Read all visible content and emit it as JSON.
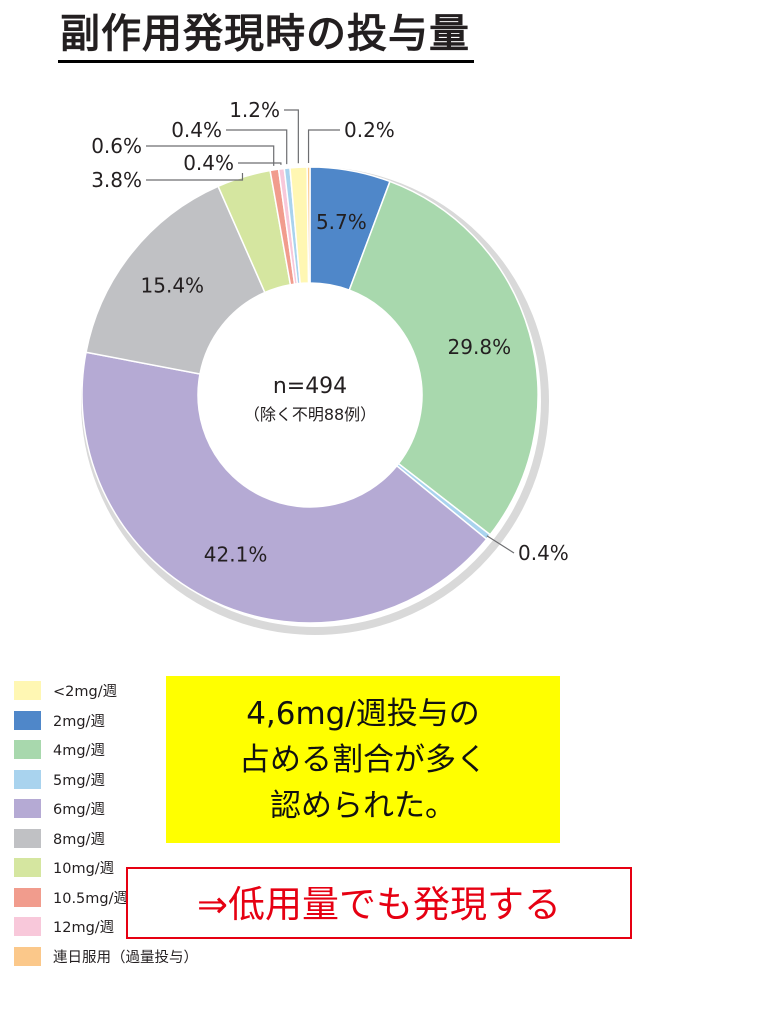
{
  "title": "副作用発現時の投与量",
  "chart_data": {
    "type": "pie",
    "center_label": "n=494",
    "center_sublabel": "（除く不明88例）",
    "slices": [
      {
        "name": "2mg/週",
        "value": 5.7,
        "label": "5.7%",
        "color": "#4f87c9"
      },
      {
        "name": "4mg/週",
        "value": 29.8,
        "label": "29.8%",
        "color": "#a8d8ad"
      },
      {
        "name": "5mg/週",
        "value": 0.4,
        "label": "0.4%",
        "color": "#a9d3ee"
      },
      {
        "name": "6mg/週",
        "value": 42.1,
        "label": "42.1%",
        "color": "#b5aad4"
      },
      {
        "name": "8mg/週",
        "value": 15.4,
        "label": "15.4%",
        "color": "#c0c1c4"
      },
      {
        "name": "10mg/週",
        "value": 3.8,
        "label": "3.8%",
        "color": "#d5e6a0"
      },
      {
        "name": "10.5mg/週",
        "value": 0.6,
        "label": "0.6%",
        "color": "#f19c8d"
      },
      {
        "name": "12mg/週",
        "value": 0.4,
        "label": "0.4%",
        "color": "#f8c8da"
      },
      {
        "name": "5mg/週",
        "value": 0.4,
        "label": "0.4%",
        "color": "#a9d3ee"
      },
      {
        "name": "<2mg/週",
        "value": 1.2,
        "label": "1.2%",
        "color": "#fff7b3"
      },
      {
        "name": "連日服用（過量投与）",
        "value": 0.2,
        "label": "0.2%",
        "color": "#fbc88a"
      }
    ],
    "legend": [
      {
        "label": "<2mg/週",
        "color": "#fff7b3"
      },
      {
        "label": "2mg/週",
        "color": "#4f87c9"
      },
      {
        "label": "4mg/週",
        "color": "#a8d8ad"
      },
      {
        "label": "5mg/週",
        "color": "#a9d3ee"
      },
      {
        "label": "6mg/週",
        "color": "#b5aad4"
      },
      {
        "label": "8mg/週",
        "color": "#c0c1c4"
      },
      {
        "label": "10mg/週",
        "color": "#d5e6a0"
      },
      {
        "label": "10.5mg/週",
        "color": "#f19c8d"
      },
      {
        "label": "12mg/週",
        "color": "#f8c8da"
      },
      {
        "label": "連日服用（過量投与）",
        "color": "#fbc88a"
      }
    ]
  },
  "callout": {
    "lines": [
      "4,6mg/週投与の",
      "占める割合が多く",
      "認められた。"
    ],
    "bg_color": "#ffff00"
  },
  "note": {
    "text": "⇒低用量でも発現する",
    "color": "#e60012"
  }
}
